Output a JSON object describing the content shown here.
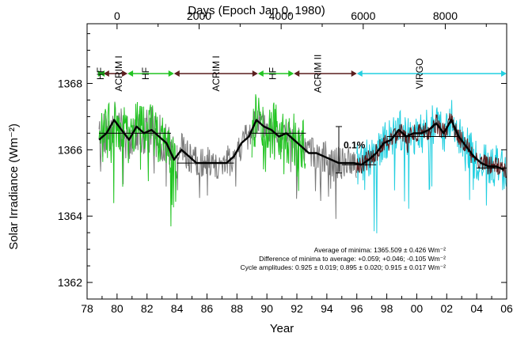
{
  "chart_data": {
    "type": "line",
    "title": "",
    "xlabel": "Year",
    "ylabel": "Solar Irradiance (Wm⁻²)",
    "x2label": "Days (Epoch Jan 0, 1980)",
    "xlim": [
      1978,
      2006
    ],
    "ylim": [
      1361.5,
      1369.8
    ],
    "x_ticks": [
      1978,
      1980,
      1982,
      1984,
      1986,
      1988,
      1990,
      1992,
      1994,
      1996,
      1998,
      2000,
      2002,
      2004,
      2006
    ],
    "x_tick_labels": [
      "78",
      "80",
      "82",
      "84",
      "86",
      "88",
      "90",
      "92",
      "94",
      "96",
      "98",
      "00",
      "02",
      "04",
      "06"
    ],
    "y_ticks": [
      1362,
      1364,
      1366,
      1368
    ],
    "y_tick_labels": [
      "1362",
      "1364",
      "1366",
      "1368"
    ],
    "x2_ticks": [
      0,
      2000,
      4000,
      6000,
      8000
    ],
    "x2_tick_labels": [
      "0",
      "2000",
      "4000",
      "6000",
      "8000"
    ],
    "colors": {
      "hf": "#22c422",
      "acrim": "#7a7a7a",
      "virgo": "#22cfe0",
      "composite": "#000000",
      "dark_segment": "#5a1e1e"
    },
    "instrument_segments": [
      {
        "label": "HF",
        "x": [
          1978.8,
          1979.1
        ],
        "color": "#22c422"
      },
      {
        "label": "ACRIM I",
        "x": [
          1979.1,
          1980.7
        ],
        "color": "#5a1e1e"
      },
      {
        "label": "HF",
        "x": [
          1980.7,
          1983.8
        ],
        "color": "#22c422"
      },
      {
        "label": "ACRIM I",
        "x": [
          1983.8,
          1989.4
        ],
        "color": "#5a1e1e"
      },
      {
        "label": "HF",
        "x": [
          1989.4,
          1991.8
        ],
        "color": "#22c422"
      },
      {
        "label": "ACRIM II",
        "x": [
          1991.8,
          1996.0
        ],
        "color": "#5a1e1e"
      },
      {
        "label": "VIRGO",
        "x": [
          1996.0,
          2006.0
        ],
        "color": "#22cfe0"
      }
    ],
    "minima_levels": [
      {
        "x": [
          1978.8,
          1983.6
        ],
        "y": 1366.5
      },
      {
        "x": [
          1984.0,
          1987.8
        ],
        "y": 1365.6
      },
      {
        "x": [
          1988.8,
          1992.6
        ],
        "y": 1366.5
      },
      {
        "x": [
          1995.0,
          1997.3
        ],
        "y": 1365.55
      },
      {
        "x": [
          1998.0,
          2002.8
        ],
        "y": 1366.4
      },
      {
        "x": [
          2004.0,
          2006.0
        ],
        "y": 1365.45
      }
    ],
    "series": [
      {
        "name": "Composite (smoothed)",
        "color": "#000000",
        "x": [
          1978.8,
          1979.3,
          1979.8,
          1980.3,
          1980.8,
          1981.3,
          1981.8,
          1982.3,
          1982.8,
          1983.3,
          1983.8,
          1984.3,
          1984.8,
          1985.3,
          1985.8,
          1986.3,
          1986.8,
          1987.3,
          1987.8,
          1988.3,
          1988.8,
          1989.3,
          1989.8,
          1990.3,
          1990.8,
          1991.3,
          1991.8,
          1992.3,
          1992.8,
          1993.3,
          1993.8,
          1994.3,
          1994.8,
          1995.3,
          1995.8,
          1996.3,
          1996.8,
          1997.3,
          1997.8,
          1998.3,
          1998.8,
          1999.3,
          1999.8,
          2000.3,
          2000.8,
          2001.3,
          2001.8,
          2002.3,
          2002.8,
          2003.3,
          2003.8,
          2004.3,
          2004.8,
          2005.3,
          2005.8
        ],
        "y": [
          1366.3,
          1366.5,
          1366.9,
          1366.6,
          1366.3,
          1366.7,
          1366.5,
          1366.6,
          1366.4,
          1366.2,
          1365.7,
          1366.0,
          1365.8,
          1365.6,
          1365.6,
          1365.6,
          1365.6,
          1365.6,
          1365.8,
          1366.2,
          1366.4,
          1366.9,
          1366.7,
          1366.6,
          1366.4,
          1366.5,
          1366.3,
          1366.1,
          1365.9,
          1365.9,
          1365.8,
          1365.7,
          1365.6,
          1365.6,
          1365.6,
          1365.55,
          1365.7,
          1365.9,
          1366.2,
          1366.3,
          1366.6,
          1366.4,
          1366.5,
          1366.5,
          1366.6,
          1366.8,
          1366.5,
          1366.9,
          1366.4,
          1366.1,
          1365.8,
          1365.6,
          1365.5,
          1365.5,
          1365.4
        ]
      }
    ],
    "annotations": {
      "labels": [
        "HF",
        "ACRIM I",
        "HF",
        "ACRIM I",
        "HF",
        "ACRIM II",
        "VIRGO"
      ],
      "label_x": [
        1978.9,
        1980.1,
        1981.9,
        1986.6,
        1990.4,
        1993.4,
        2000.2
      ],
      "scale_bar_label": "0.1%",
      "scale_bar_y": [
        1365.3,
        1366.7
      ],
      "scale_bar_x": 1994.8,
      "stats_lines": [
        "Average of minima:  1365.509 ± 0.426 Wm⁻²",
        "Difference of minima to average: +0.059; +0.046; -0.105 Wm⁻²",
        "Cycle amplitudes:  0.925 ± 0.019; 0.895 ± 0.020; 0.915 ± 0.017 Wm⁻²"
      ]
    },
    "grid": false,
    "legend": "none"
  }
}
